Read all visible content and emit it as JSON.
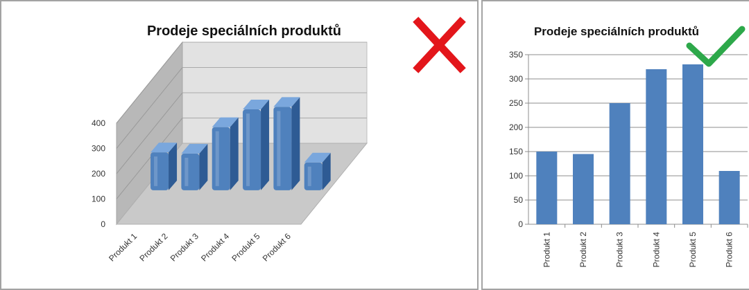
{
  "chart_data": [
    {
      "type": "bar",
      "variant": "3d",
      "verdict": "incorrect",
      "title": "Prodeje speciálních produktů",
      "categories": [
        "Produkt 1",
        "Produkt 2",
        "Produkt 3",
        "Produkt 4",
        "Produkt 5",
        "Produkt 6"
      ],
      "values": [
        150,
        145,
        250,
        320,
        330,
        110
      ],
      "yticks": [
        0,
        100,
        200,
        300,
        400
      ],
      "ylim": [
        0,
        400
      ],
      "grid": true,
      "colors": {
        "bar": "#4f81bd",
        "bar_top": "#7aa7dd",
        "bar_side": "#2e5b94",
        "wall": "#e2e2e2",
        "side_wall": "#b8b8b8",
        "floor": "#c9c9c9"
      }
    },
    {
      "type": "bar",
      "variant": "2d",
      "verdict": "correct",
      "title": "Prodeje speciálních produktů",
      "categories": [
        "Produkt 1",
        "Produkt 2",
        "Produkt 3",
        "Produkt 4",
        "Produkt 5",
        "Produkt 6"
      ],
      "values": [
        150,
        145,
        250,
        320,
        330,
        110
      ],
      "yticks": [
        0,
        50,
        100,
        150,
        200,
        250,
        300,
        350
      ],
      "ylim": [
        0,
        350
      ],
      "grid": true,
      "colors": {
        "bar": "#4f81bd"
      }
    }
  ],
  "marks": {
    "cross_color": "#e3161b",
    "check_color": "#2da84a",
    "cross_icon": "cross-icon",
    "check_icon": "check-icon"
  }
}
